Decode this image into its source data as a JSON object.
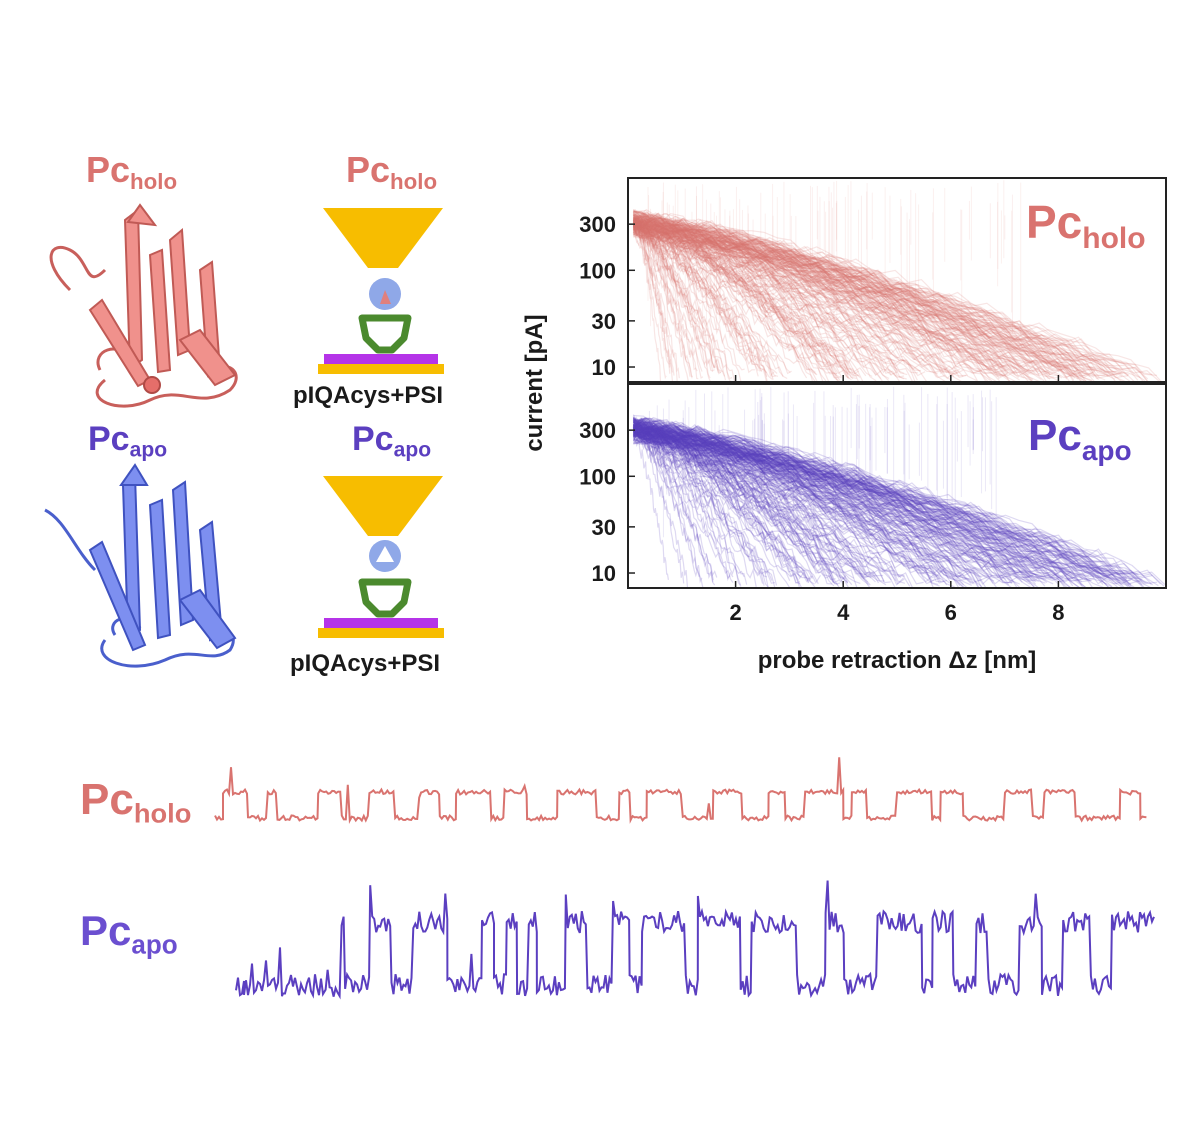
{
  "labels": {
    "pc_base": "Pc",
    "holo_sub": "holo",
    "apo_sub": "apo"
  },
  "schematic_caption": "pIQAcys+PSI",
  "colors": {
    "holo": "#d9736f",
    "apo": "#5b3fc0",
    "tip": "#f7bd00",
    "substrate": "#b534e8",
    "linker": "#4b8a2e",
    "copper": "#e08a8a",
    "probe_ball": "#8fa8e8"
  },
  "icons": [
    "protein-ribbon-holo",
    "protein-ribbon-apo",
    "stm-tip-schematic"
  ],
  "chart_data": {
    "type": "line",
    "ylabel": "current [pA]",
    "xlabel": "probe retraction Δz [nm]",
    "yscale": "log",
    "ylim": [
      7,
      900
    ],
    "xlim": [
      0,
      10
    ],
    "xticks": [
      "2",
      "4",
      "6",
      "8"
    ],
    "xtick_values": [
      2,
      4,
      6,
      8
    ],
    "yticks": [
      "300",
      "100",
      "30",
      "10"
    ],
    "ytick_values": [
      300,
      100,
      30,
      10
    ],
    "panels": [
      {
        "name": "holo",
        "label": "Pc",
        "sub": "holo"
      },
      {
        "name": "apo",
        "label": "Pc",
        "sub": "apo"
      }
    ]
  }
}
